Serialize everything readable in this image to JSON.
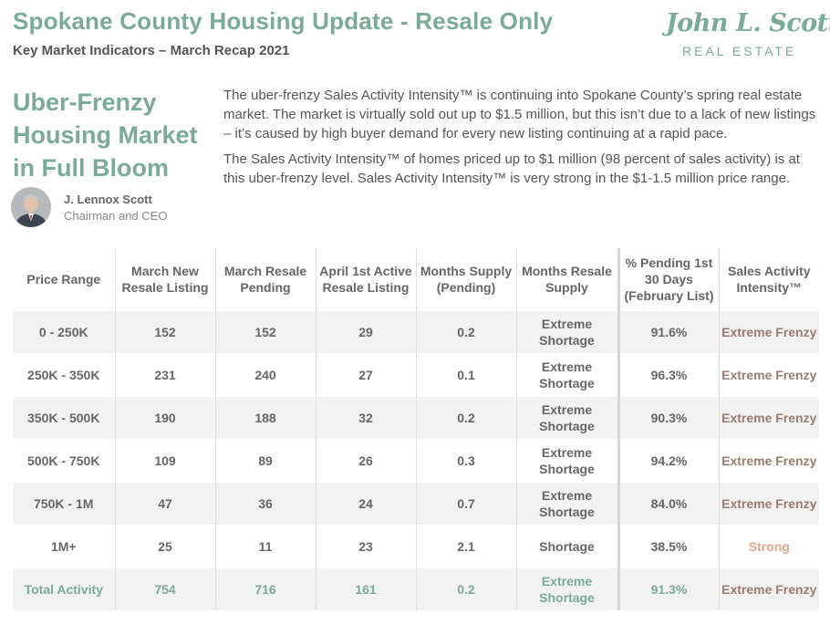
{
  "header": {
    "title": "Spokane County Housing Update - Resale Only",
    "subtitle": "Key Market Indicators – March Recap 2021"
  },
  "logo": {
    "script_text": "John L. Scott",
    "sub_text": "REAL ESTATE",
    "color": "#7aab94"
  },
  "headline": "Uber-Frenzy Housing Market in Full Bloom",
  "author": {
    "name": "J. Lennox Scott",
    "title": "Chairman and CEO"
  },
  "intro": {
    "paragraphs": [
      "The uber-frenzy Sales Activity Intensity™ is continuing into Spokane County’s spring real estate market. The market is virtually sold out up to $1.5 million, but this isn’t due to a lack of new listings – it’s caused by high buyer demand for every new listing continuing at a rapid pace.",
      "The Sales Activity Intensity™ of homes priced up to $1 million (98 percent of sales activity) is at this uber-frenzy level. Sales Activity Intensity™ is very strong in the $1-1.5 million price range."
    ]
  },
  "table": {
    "headers": [
      "Price Range",
      "March New Resale Listing",
      "March Resale Pending",
      "April 1st Active Resale Listing",
      "Months Supply (Pending)",
      "Months Resale Supply",
      "% Pending 1st 30 Days (February List)",
      "Sales Activity Intensity™"
    ],
    "rows": [
      {
        "price_range": "0 - 250K",
        "new_listing": "152",
        "pending": "152",
        "active": "29",
        "months_supply": "0.2",
        "resale_supply": "Extreme Shortage",
        "pct_pending": "91.6%",
        "intensity": "Extreme Frenzy"
      },
      {
        "price_range": "250K - 350K",
        "new_listing": "231",
        "pending": "240",
        "active": "27",
        "months_supply": "0.1",
        "resale_supply": "Extreme Shortage",
        "pct_pending": "96.3%",
        "intensity": "Extreme Frenzy"
      },
      {
        "price_range": "350K - 500K",
        "new_listing": "190",
        "pending": "188",
        "active": "32",
        "months_supply": "0.2",
        "resale_supply": "Extreme Shortage",
        "pct_pending": "90.3%",
        "intensity": "Extreme Frenzy"
      },
      {
        "price_range": "500K - 750K",
        "new_listing": "109",
        "pending": "89",
        "active": "26",
        "months_supply": "0.3",
        "resale_supply": "Extreme Shortage",
        "pct_pending": "94.2%",
        "intensity": "Extreme Frenzy"
      },
      {
        "price_range": "750K - 1M",
        "new_listing": "47",
        "pending": "36",
        "active": "24",
        "months_supply": "0.7",
        "resale_supply": "Extreme Shortage",
        "pct_pending": "84.0%",
        "intensity": "Extreme Frenzy"
      },
      {
        "price_range": "1M+",
        "new_listing": "25",
        "pending": "11",
        "active": "23",
        "months_supply": "2.1",
        "resale_supply": "Shortage",
        "pct_pending": "38.5%",
        "intensity": "Strong"
      }
    ],
    "total": {
      "price_range": "Total Activity",
      "new_listing": "754",
      "pending": "716",
      "active": "161",
      "months_supply": "0.2",
      "resale_supply": "Extreme Shortage",
      "pct_pending": "91.3%",
      "intensity": "Extreme Frenzy"
    }
  },
  "colors": {
    "brand_green": "#7aab94",
    "frenzy": "#9b7b72",
    "strong": "#dfa588",
    "row_stripe": "#f2f2f2"
  }
}
